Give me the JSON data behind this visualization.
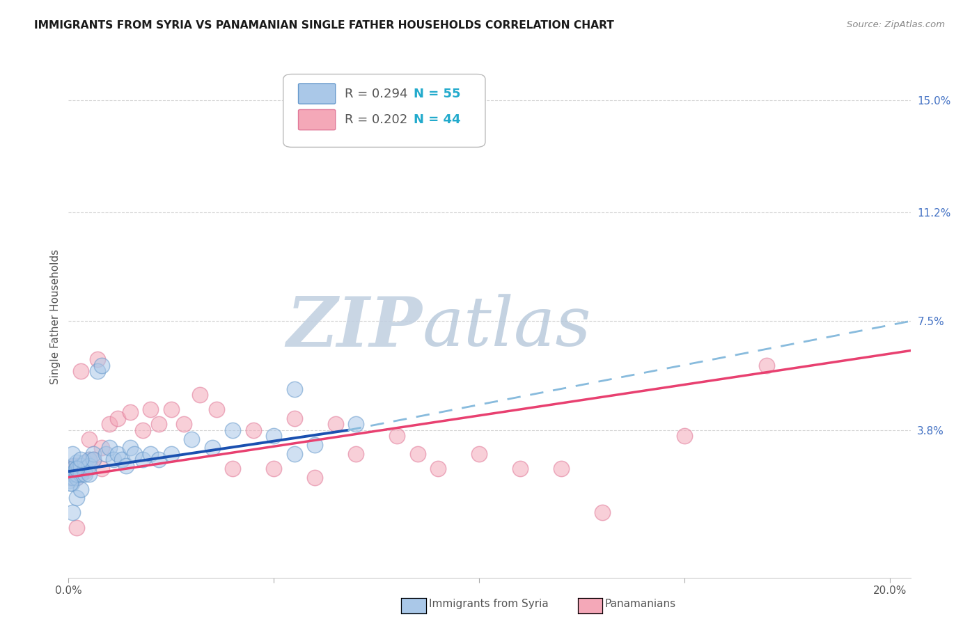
{
  "title": "IMMIGRANTS FROM SYRIA VS PANAMANIAN SINGLE FATHER HOUSEHOLDS CORRELATION CHART",
  "source": "Source: ZipAtlas.com",
  "ylabel": "Single Father Households",
  "xlim": [
    0.0,
    0.205
  ],
  "ylim": [
    -0.012,
    0.165
  ],
  "xtick_positions": [
    0.0,
    0.05,
    0.1,
    0.15,
    0.2
  ],
  "xticklabels": [
    "0.0%",
    "",
    "",
    "",
    "20.0%"
  ],
  "ytick_right_positions": [
    0.038,
    0.075,
    0.112,
    0.15
  ],
  "ytick_right_labels": [
    "3.8%",
    "7.5%",
    "11.2%",
    "15.0%"
  ],
  "series1_fill": "#aac8e8",
  "series1_edge": "#6699cc",
  "series2_fill": "#f4a8b8",
  "series2_edge": "#e07898",
  "trend1_solid_color": "#1a50b0",
  "trend2_color": "#e84070",
  "trend1_dash_color": "#88bbdd",
  "grid_color": "#d0d0d0",
  "background_color": "#ffffff",
  "title_color": "#1a1a1a",
  "source_color": "#888888",
  "right_tick_color": "#4472c4",
  "watermark_zip_color": "#b0c8e0",
  "watermark_atlas_color": "#a8c0d8",
  "legend1_label_r": "R = 0.294",
  "legend1_label_n": "N = 55",
  "legend2_label_r": "R = 0.202",
  "legend2_label_n": "N = 44",
  "legend1_bottom": "Immigrants from Syria",
  "legend2_bottom": "Panamanians",
  "blue_x": [
    0.0003,
    0.0005,
    0.0007,
    0.001,
    0.001,
    0.0012,
    0.0012,
    0.0015,
    0.0015,
    0.002,
    0.002,
    0.002,
    0.002,
    0.0025,
    0.003,
    0.003,
    0.003,
    0.003,
    0.004,
    0.004,
    0.004,
    0.005,
    0.005,
    0.005,
    0.006,
    0.006,
    0.007,
    0.008,
    0.009,
    0.01,
    0.011,
    0.012,
    0.013,
    0.014,
    0.015,
    0.016,
    0.018,
    0.02,
    0.022,
    0.025,
    0.03,
    0.035,
    0.04,
    0.05,
    0.055,
    0.06,
    0.07,
    0.055,
    0.002,
    0.003,
    0.0005,
    0.001,
    0.001,
    0.002,
    0.003
  ],
  "blue_y": [
    0.021,
    0.022,
    0.02,
    0.023,
    0.026,
    0.022,
    0.025,
    0.024,
    0.023,
    0.022,
    0.025,
    0.027,
    0.023,
    0.025,
    0.026,
    0.025,
    0.023,
    0.026,
    0.027,
    0.025,
    0.023,
    0.028,
    0.026,
    0.023,
    0.03,
    0.028,
    0.058,
    0.06,
    0.03,
    0.032,
    0.028,
    0.03,
    0.028,
    0.026,
    0.032,
    0.03,
    0.028,
    0.03,
    0.028,
    0.03,
    0.035,
    0.032,
    0.038,
    0.036,
    0.03,
    0.033,
    0.04,
    0.052,
    0.015,
    0.018,
    0.02,
    0.01,
    0.03,
    0.025,
    0.028
  ],
  "pink_x": [
    0.0003,
    0.0005,
    0.001,
    0.001,
    0.0015,
    0.002,
    0.002,
    0.003,
    0.003,
    0.004,
    0.004,
    0.005,
    0.005,
    0.006,
    0.007,
    0.008,
    0.008,
    0.01,
    0.012,
    0.015,
    0.018,
    0.02,
    0.022,
    0.025,
    0.028,
    0.032,
    0.036,
    0.04,
    0.045,
    0.05,
    0.055,
    0.06,
    0.065,
    0.07,
    0.08,
    0.085,
    0.09,
    0.1,
    0.11,
    0.12,
    0.13,
    0.15,
    0.17,
    0.002
  ],
  "pink_y": [
    0.022,
    0.024,
    0.022,
    0.025,
    0.026,
    0.022,
    0.026,
    0.024,
    0.058,
    0.026,
    0.024,
    0.028,
    0.035,
    0.028,
    0.062,
    0.032,
    0.025,
    0.04,
    0.042,
    0.044,
    0.038,
    0.045,
    0.04,
    0.045,
    0.04,
    0.05,
    0.045,
    0.025,
    0.038,
    0.025,
    0.042,
    0.022,
    0.04,
    0.03,
    0.036,
    0.03,
    0.025,
    0.03,
    0.025,
    0.025,
    0.01,
    0.036,
    0.06,
    0.005
  ],
  "blue_trend_x0": 0.0,
  "blue_trend_x1": 0.068,
  "blue_trend_dash_x0": 0.068,
  "blue_trend_dash_x1": 0.205,
  "blue_trend_y_at_0": 0.024,
  "blue_trend_y_at_068": 0.038,
  "blue_trend_y_at_205": 0.075,
  "pink_trend_y_at_0": 0.022,
  "pink_trend_y_at_205": 0.065
}
